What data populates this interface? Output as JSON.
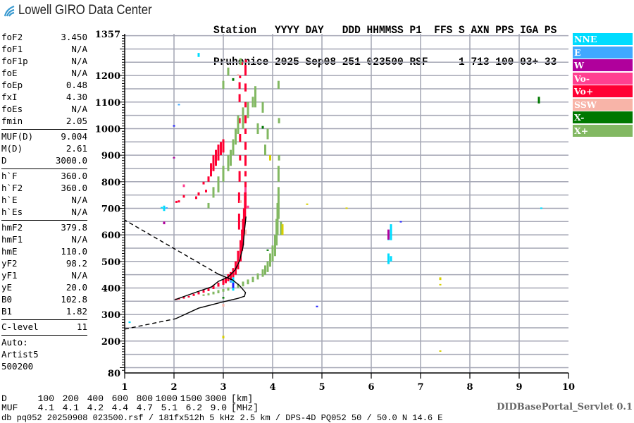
{
  "logo": {
    "text": "Lowell GIRO Data Center",
    "icon": "signal-waves-icon",
    "color": "#3a9ad0"
  },
  "header": {
    "labels_line": "Station   YYYY DAY   DDD HHMMSS P1  FFS S AXN PPS IGA PS",
    "values_line": "Pruhonice 2025 Sep08 251 023500 RSF     1 713 100 03+ 33"
  },
  "params": {
    "groups": [
      [
        [
          "foF2",
          "3.450"
        ],
        [
          "foF1",
          "N/A"
        ],
        [
          "foF1p",
          "N/A"
        ],
        [
          "foE",
          "N/A"
        ],
        [
          "foEp",
          "0.48"
        ],
        [
          "fxI",
          "4.30"
        ],
        [
          "foEs",
          "N/A"
        ],
        [
          "fmin",
          "2.05"
        ]
      ],
      [
        [
          "MUF(D)",
          "9.004"
        ],
        [
          "M(D)",
          "2.61"
        ],
        [
          "D",
          "3000.0"
        ]
      ],
      [
        [
          "h`F",
          "360.0"
        ],
        [
          "h`F2",
          "360.0"
        ],
        [
          "h`E",
          "N/A"
        ],
        [
          "h`Es",
          "N/A"
        ]
      ],
      [
        [
          "hmF2",
          "379.8"
        ],
        [
          "hmF1",
          "N/A"
        ],
        [
          "hmE",
          "110.0"
        ],
        [
          "yF2",
          "98.2"
        ],
        [
          "yF1",
          "N/A"
        ],
        [
          "yE",
          "20.0"
        ],
        [
          "B0",
          "102.8"
        ],
        [
          "B1",
          "1.82"
        ]
      ],
      [
        [
          "C-level",
          "11"
        ]
      ]
    ],
    "auto_lines": [
      "Auto:",
      "Artist5",
      "500200"
    ]
  },
  "legend": [
    {
      "label": "NNE",
      "color": "#00dcff"
    },
    {
      "label": "E",
      "color": "#40a8ff"
    },
    {
      "label": "W",
      "color": "#b0009c"
    },
    {
      "label": "Vo-",
      "color": "#ff4090"
    },
    {
      "label": "Vo+",
      "color": "#ff0033"
    },
    {
      "label": "SSW",
      "color": "#f8b4a8"
    },
    {
      "label": "X-",
      "color": "#007800"
    },
    {
      "label": "X+",
      "color": "#82b862"
    }
  ],
  "mufrows": {
    "d_label": "D",
    "d_values": [
      "100",
      "200",
      "400",
      "600",
      "800",
      "1000",
      "1500",
      "3000"
    ],
    "d_unit": "[km]",
    "muf_label": "MUF",
    "muf_values": [
      "4.1",
      "4.1",
      "4.2",
      "4.4",
      "4.7",
      "5.1",
      "6.2",
      "9.0"
    ],
    "muf_unit": "[MHz]"
  },
  "footer": "db pq052 20250908 023500.rsf / 181fx512h 5 kHz 2.5 km / DPS-4D PQ052 50 / 50.0 N 14.6 E",
  "servlet": "DIDBasePortal_Servlet 0.1",
  "chart_data": {
    "type": "scatter",
    "xlim": [
      1,
      10
    ],
    "ylim": [
      80,
      1357
    ],
    "xticks": [
      "1",
      "2",
      "3",
      "4",
      "5",
      "6",
      "7",
      "8",
      "9",
      "10"
    ],
    "yticks": [
      "1357",
      "1200",
      "1100",
      "1000",
      "900",
      "800",
      "700",
      "600",
      "500",
      "400",
      "300",
      "200",
      "80"
    ],
    "grid": true,
    "legend_placement": "right",
    "other_colors": {
      "unclassified": "#d8d000",
      "blue": "#2020ff",
      "profile": "#000000"
    },
    "echo_segments_format": "[frequency MHz, height low km, height high km]",
    "series": [
      {
        "name": "Vo+",
        "color": "#ff0033",
        "echoes": [
          [
            2.05,
            355,
            360
          ],
          [
            2.1,
            357,
            362
          ],
          [
            2.2,
            360,
            366
          ],
          [
            2.3,
            364,
            370
          ],
          [
            2.4,
            370,
            378
          ],
          [
            2.5,
            376,
            385
          ],
          [
            2.6,
            382,
            392
          ],
          [
            2.7,
            388,
            400
          ],
          [
            2.8,
            396,
            410
          ],
          [
            2.9,
            405,
            420
          ],
          [
            3.0,
            412,
            432
          ],
          [
            3.05,
            418,
            440
          ],
          [
            3.1,
            425,
            452
          ],
          [
            3.15,
            430,
            460
          ],
          [
            3.2,
            440,
            475
          ],
          [
            3.25,
            450,
            500
          ],
          [
            3.3,
            470,
            540
          ],
          [
            3.35,
            500,
            580
          ],
          [
            3.38,
            540,
            620
          ],
          [
            3.4,
            560,
            660
          ],
          [
            3.42,
            600,
            700
          ],
          [
            3.44,
            650,
            760
          ],
          [
            3.45,
            700,
            800
          ],
          [
            3.45,
            820,
            840
          ],
          [
            3.45,
            860,
            900
          ],
          [
            3.45,
            920,
            950
          ],
          [
            3.45,
            980,
            1000
          ],
          [
            3.45,
            1020,
            1050
          ],
          [
            3.45,
            1080,
            1100
          ],
          [
            3.45,
            1140,
            1170
          ],
          [
            3.45,
            1200,
            1240
          ],
          [
            3.46,
            1250,
            1260
          ],
          [
            3.32,
            620,
            680
          ],
          [
            3.32,
            720,
            760
          ],
          [
            3.33,
            800,
            840
          ],
          [
            3.34,
            880,
            900
          ],
          [
            3.34,
            950,
            980
          ],
          [
            3.33,
            1020,
            1040
          ],
          [
            3.33,
            1100,
            1130
          ],
          [
            3.33,
            1150,
            1175
          ],
          [
            3.34,
            1190,
            1200
          ],
          [
            2.05,
            720,
            728
          ],
          [
            2.1,
            722,
            730
          ],
          [
            2.2,
            740,
            750
          ],
          [
            2.45,
            735,
            745
          ],
          [
            2.5,
            748,
            760
          ],
          [
            2.65,
            760,
            770
          ],
          [
            2.6,
            790,
            800
          ],
          [
            2.7,
            800,
            820
          ],
          [
            2.75,
            820,
            870
          ],
          [
            2.8,
            840,
            900
          ],
          [
            2.85,
            860,
            920
          ],
          [
            2.9,
            880,
            940
          ],
          [
            2.95,
            900,
            950
          ],
          [
            3.0,
            910,
            960
          ],
          [
            3.38,
            1240,
            1250
          ]
        ]
      },
      {
        "name": "X+",
        "color": "#82b862",
        "echoes": [
          [
            2.6,
            370,
            376
          ],
          [
            2.7,
            372,
            380
          ],
          [
            2.8,
            376,
            386
          ],
          [
            2.9,
            380,
            392
          ],
          [
            3.0,
            386,
            396
          ],
          [
            3.1,
            390,
            402
          ],
          [
            3.2,
            396,
            408
          ],
          [
            3.3,
            400,
            416
          ],
          [
            3.4,
            406,
            424
          ],
          [
            3.5,
            414,
            432
          ],
          [
            3.6,
            422,
            442
          ],
          [
            3.7,
            432,
            455
          ],
          [
            3.8,
            442,
            470
          ],
          [
            3.85,
            450,
            485
          ],
          [
            3.9,
            460,
            500
          ],
          [
            3.95,
            480,
            530
          ],
          [
            4.0,
            500,
            560
          ],
          [
            4.05,
            520,
            600
          ],
          [
            4.08,
            560,
            660
          ],
          [
            4.1,
            600,
            720
          ],
          [
            4.12,
            660,
            780
          ],
          [
            4.12,
            800,
            860
          ],
          [
            4.13,
            880,
            900
          ],
          [
            4.13,
            1020,
            1040
          ],
          [
            4.12,
            1150,
            1180
          ],
          [
            4.17,
            600,
            650
          ],
          [
            2.7,
            700,
            720
          ],
          [
            2.8,
            740,
            780
          ],
          [
            2.9,
            760,
            820
          ],
          [
            3.0,
            800,
            860
          ],
          [
            3.1,
            840,
            900
          ],
          [
            3.15,
            860,
            920
          ],
          [
            3.2,
            900,
            960
          ],
          [
            3.25,
            940,
            1000
          ],
          [
            3.3,
            980,
            1050
          ],
          [
            3.4,
            1000,
            1080
          ],
          [
            3.5,
            1040,
            1100
          ],
          [
            3.6,
            1080,
            1120
          ],
          [
            3.65,
            1080,
            1160
          ],
          [
            3.0,
            1150,
            1180
          ],
          [
            3.1,
            1200,
            1230
          ],
          [
            3.35,
            1240,
            1265
          ],
          [
            3.8,
            1060,
            1100
          ],
          [
            3.9,
            960,
            1000
          ],
          [
            3.85,
            900,
            940
          ],
          [
            3.7,
            980,
            1020
          ]
        ]
      },
      {
        "name": "NNE",
        "color": "#00dcff",
        "echoes": [
          [
            6.35,
            490,
            530
          ],
          [
            6.4,
            500,
            520
          ],
          [
            6.4,
            580,
            640
          ],
          [
            6.35,
            580,
            610
          ],
          [
            1.8,
            690,
            710
          ],
          [
            2.5,
            1270,
            1285
          ],
          [
            9.45,
            700,
            703
          ],
          [
            3.2,
            390,
            440
          ],
          [
            1.1,
            268,
            274
          ],
          [
            1.75,
            700,
            705
          ]
        ]
      },
      {
        "name": "W",
        "color": "#b0009c",
        "echoes": [
          [
            6.35,
            582,
            620
          ],
          [
            1.8,
            640,
            650
          ],
          [
            2.0,
            890,
            893
          ]
        ]
      },
      {
        "name": "E",
        "color": "#40a8ff",
        "echoes": [
          [
            2.1,
            1090,
            1093
          ],
          [
            1.85,
            700,
            704
          ],
          [
            3.15,
            420,
            430
          ]
        ]
      },
      {
        "name": "Vo-",
        "color": "#ff4090",
        "echoes": [
          [
            3.45,
            760,
            780
          ],
          [
            2.2,
            780,
            790
          ],
          [
            3.5,
            700,
            710
          ]
        ]
      },
      {
        "name": "SSW",
        "color": "#f8b4a8",
        "echoes": [
          [
            3.45,
            600,
            620
          ],
          [
            3.35,
            720,
            730
          ],
          [
            3.0,
            330,
            340
          ],
          [
            3.3,
            1200,
            1205
          ]
        ]
      },
      {
        "name": "X-",
        "color": "#007800",
        "echoes": [
          [
            9.4,
            1095,
            1120
          ],
          [
            3.8,
            1000,
            1010
          ],
          [
            3.2,
            1180,
            1190
          ],
          [
            3.0,
            360,
            366
          ],
          [
            3.9,
            540,
            545
          ]
        ]
      },
      {
        "name": "",
        "color": "#d8d000",
        "echoes": [
          [
            7.4,
            430,
            440
          ],
          [
            7.4,
            410,
            415
          ],
          [
            7.4,
            160,
            165
          ],
          [
            4.7,
            715,
            718
          ],
          [
            3.0,
            210,
            220
          ],
          [
            4.2,
            600,
            640
          ],
          [
            3.95,
            880,
            900
          ],
          [
            5.5,
            700,
            703
          ]
        ]
      },
      {
        "name": "",
        "color": "#2020ff",
        "echoes": [
          [
            3.2,
            400,
            420
          ],
          [
            6.6,
            650,
            652
          ],
          [
            2.0,
            1010,
            1013
          ],
          [
            4.9,
            330,
            333
          ]
        ]
      }
    ],
    "fitted_trace": [
      [
        2.01,
        355
      ],
      [
        2.43,
        383
      ],
      [
        2.76,
        404
      ],
      [
        2.9,
        425
      ],
      [
        3.1,
        441
      ],
      [
        3.24,
        468
      ],
      [
        3.33,
        502
      ],
      [
        3.4,
        555
      ],
      [
        3.43,
        616
      ],
      [
        3.46,
        669
      ]
    ],
    "profile_solid": [
      [
        2.03,
        284
      ],
      [
        2.5,
        324
      ],
      [
        3.0,
        348
      ],
      [
        3.3,
        361
      ],
      [
        3.43,
        369
      ],
      [
        3.45,
        383
      ],
      [
        3.33,
        409
      ],
      [
        3.19,
        430
      ],
      [
        2.9,
        452
      ]
    ],
    "profile_dashed_lower": [
      [
        1.0,
        245
      ],
      [
        2.03,
        284
      ]
    ],
    "profile_dashed_upper": [
      [
        2.9,
        452
      ],
      [
        1.0,
        656
      ]
    ]
  }
}
